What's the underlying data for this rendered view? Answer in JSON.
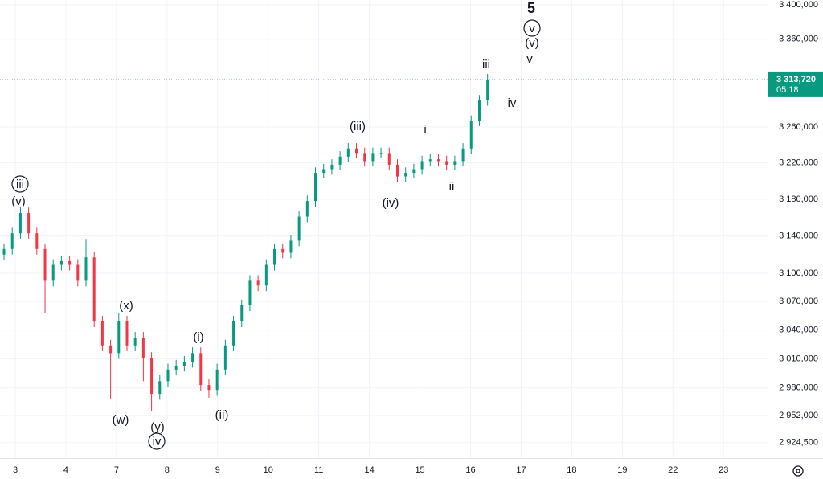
{
  "chart_data": {
    "type": "ohlc",
    "log_scale": true,
    "grid": true,
    "up_color": "#089981",
    "down_color": "#f23645",
    "xlim": [
      -0.302,
      14.87
    ],
    "ylim": [
      2909000,
      3405600
    ],
    "xticks": [
      {
        "value": 0,
        "label": "3"
      },
      {
        "value": 1,
        "label": "4"
      },
      {
        "value": 2,
        "label": "7"
      },
      {
        "value": 3,
        "label": "8"
      },
      {
        "value": 4,
        "label": "9"
      },
      {
        "value": 5,
        "label": "10"
      },
      {
        "value": 6,
        "label": "11"
      },
      {
        "value": 7,
        "label": "14"
      },
      {
        "value": 8,
        "label": "15"
      },
      {
        "value": 9,
        "label": "16"
      },
      {
        "value": 10,
        "label": "17"
      },
      {
        "value": 11,
        "label": "18"
      },
      {
        "value": 12,
        "label": "19"
      },
      {
        "value": 13,
        "label": "22"
      },
      {
        "value": 14,
        "label": "23"
      }
    ],
    "yticks": [
      {
        "value": 3400000,
        "label": "3 400,000"
      },
      {
        "value": 3360000,
        "label": "3 360,000"
      },
      {
        "value": 3260000,
        "label": "3 260,000"
      },
      {
        "value": 3220000,
        "label": "3 220,000"
      },
      {
        "value": 3180000,
        "label": "3 180,000"
      },
      {
        "value": 3140000,
        "label": "3 140,000"
      },
      {
        "value": 3100000,
        "label": "3 100,000"
      },
      {
        "value": 3070000,
        "label": "3 070,000"
      },
      {
        "value": 3040000,
        "label": "3 040,000"
      },
      {
        "value": 3010000,
        "label": "3 010,000"
      },
      {
        "value": 2980000,
        "label": "2 980,000"
      },
      {
        "value": 2952000,
        "label": "2 952,000"
      },
      {
        "value": 2924500,
        "label": "2 924,500"
      }
    ],
    "last_price": {
      "value": 3313720,
      "label": "3 313,720"
    },
    "countdown": "05:18",
    "x": [
      -0.222,
      -0.06,
      0.102,
      0.264,
      0.426,
      0.588,
      0.75,
      0.912,
      1.074,
      1.236,
      1.398,
      1.56,
      1.722,
      1.884,
      2.046,
      2.208,
      2.37,
      2.532,
      2.694,
      2.856,
      3.018,
      3.18,
      3.342,
      3.504,
      3.666,
      3.828,
      3.99,
      4.152,
      4.314,
      4.476,
      4.638,
      4.8,
      4.962,
      5.124,
      5.286,
      5.448,
      5.61,
      5.772,
      5.934,
      6.096,
      6.258,
      6.42,
      6.582,
      6.744,
      6.906,
      7.068,
      7.23,
      7.392,
      7.554,
      7.716,
      7.878,
      8.04,
      8.202,
      8.364,
      8.526,
      8.688,
      8.85,
      9.012,
      9.174,
      9.336
    ],
    "open": [
      3120000,
      3126000,
      3143000,
      3165000,
      3143000,
      3126000,
      3092000,
      3109000,
      3113000,
      3109000,
      3092000,
      3117000,
      3049000,
      3024000,
      3016000,
      3049000,
      3024000,
      3032000,
      3011000,
      2974000,
      2987000,
      2999000,
      3003000,
      3007000,
      3016000,
      2983000,
      2978000,
      2999000,
      3024000,
      3049000,
      3066000,
      3092000,
      3087000,
      3109000,
      3126000,
      3122000,
      3135000,
      3161000,
      3178000,
      3209000,
      3213000,
      3218000,
      3227000,
      3236000,
      3231000,
      3222000,
      3231000,
      3231000,
      3218000,
      3205000,
      3209000,
      3213000,
      3222000,
      3224000,
      3222000,
      3218000,
      3222000,
      3236000,
      3267000,
      3290000
    ],
    "high": [
      3132000,
      3149000,
      3172000,
      3171000,
      3149000,
      3132000,
      3115000,
      3119000,
      3119000,
      3115000,
      3136000,
      3123000,
      3055000,
      3030000,
      3058000,
      3055000,
      3038000,
      3038000,
      3017000,
      2993000,
      3005000,
      3009000,
      3013000,
      3022000,
      3022000,
      2989000,
      3005000,
      3030000,
      3055000,
      3072000,
      3098000,
      3098000,
      3115000,
      3132000,
      3132000,
      3141000,
      3167000,
      3184000,
      3215000,
      3219000,
      3224000,
      3233000,
      3242000,
      3242000,
      3237000,
      3237000,
      3237000,
      3237000,
      3224000,
      3215000,
      3219000,
      3228000,
      3230000,
      3230000,
      3228000,
      3228000,
      3242000,
      3273000,
      3296000,
      3320000
    ],
    "low": [
      3114000,
      3120000,
      3137000,
      3137000,
      3120000,
      3058000,
      3086000,
      3103000,
      3103000,
      3086000,
      3086000,
      3043000,
      3018000,
      2969000,
      3010000,
      3018000,
      3018000,
      2987000,
      2956000,
      2968000,
      2981000,
      2993000,
      2997000,
      3001000,
      2977000,
      2970000,
      2972000,
      2993000,
      3018000,
      3043000,
      3060000,
      3081000,
      3081000,
      3103000,
      3116000,
      3116000,
      3129000,
      3155000,
      3172000,
      3203000,
      3207000,
      3212000,
      3221000,
      3225000,
      3216000,
      3216000,
      3225000,
      3212000,
      3199000,
      3199000,
      3203000,
      3207000,
      3216000,
      3216000,
      3212000,
      3212000,
      3216000,
      3230000,
      3261000,
      3284000
    ],
    "close": [
      3126000,
      3143000,
      3165000,
      3143000,
      3126000,
      3092000,
      3109000,
      3113000,
      3109000,
      3092000,
      3117000,
      3049000,
      3024000,
      3016000,
      3049000,
      3024000,
      3032000,
      3011000,
      2974000,
      2987000,
      2999000,
      3003000,
      3007000,
      3016000,
      2983000,
      2978000,
      2999000,
      3024000,
      3049000,
      3066000,
      3092000,
      3087000,
      3109000,
      3126000,
      3122000,
      3135000,
      3161000,
      3178000,
      3209000,
      3213000,
      3218000,
      3227000,
      3236000,
      3231000,
      3222000,
      3231000,
      3231000,
      3218000,
      3205000,
      3209000,
      3213000,
      3222000,
      3224000,
      3222000,
      3218000,
      3222000,
      3236000,
      3267000,
      3290000,
      3313720
    ],
    "annotations": [
      {
        "text": "iii",
        "circled": true
      },
      {
        "text": "(v)",
        "circled": false
      },
      {
        "text": "(x)",
        "circled": false
      },
      {
        "text": "(w)",
        "circled": false
      },
      {
        "text": "(y)",
        "circled": false
      },
      {
        "text": "iv",
        "circled": true
      },
      {
        "text": "(i)",
        "circled": false
      },
      {
        "text": "(ii)",
        "circled": false
      },
      {
        "text": "(iii)",
        "circled": false
      },
      {
        "text": "(iv)",
        "circled": false
      },
      {
        "text": "i",
        "circled": false
      },
      {
        "text": "ii",
        "circled": false
      },
      {
        "text": "iii",
        "circled": false
      },
      {
        "text": "iv",
        "circled": false
      },
      {
        "text": "5",
        "circled": false
      },
      {
        "text": "v",
        "circled": true
      },
      {
        "text": "(v)",
        "circled": false
      },
      {
        "text": "v",
        "circled": false
      }
    ]
  }
}
